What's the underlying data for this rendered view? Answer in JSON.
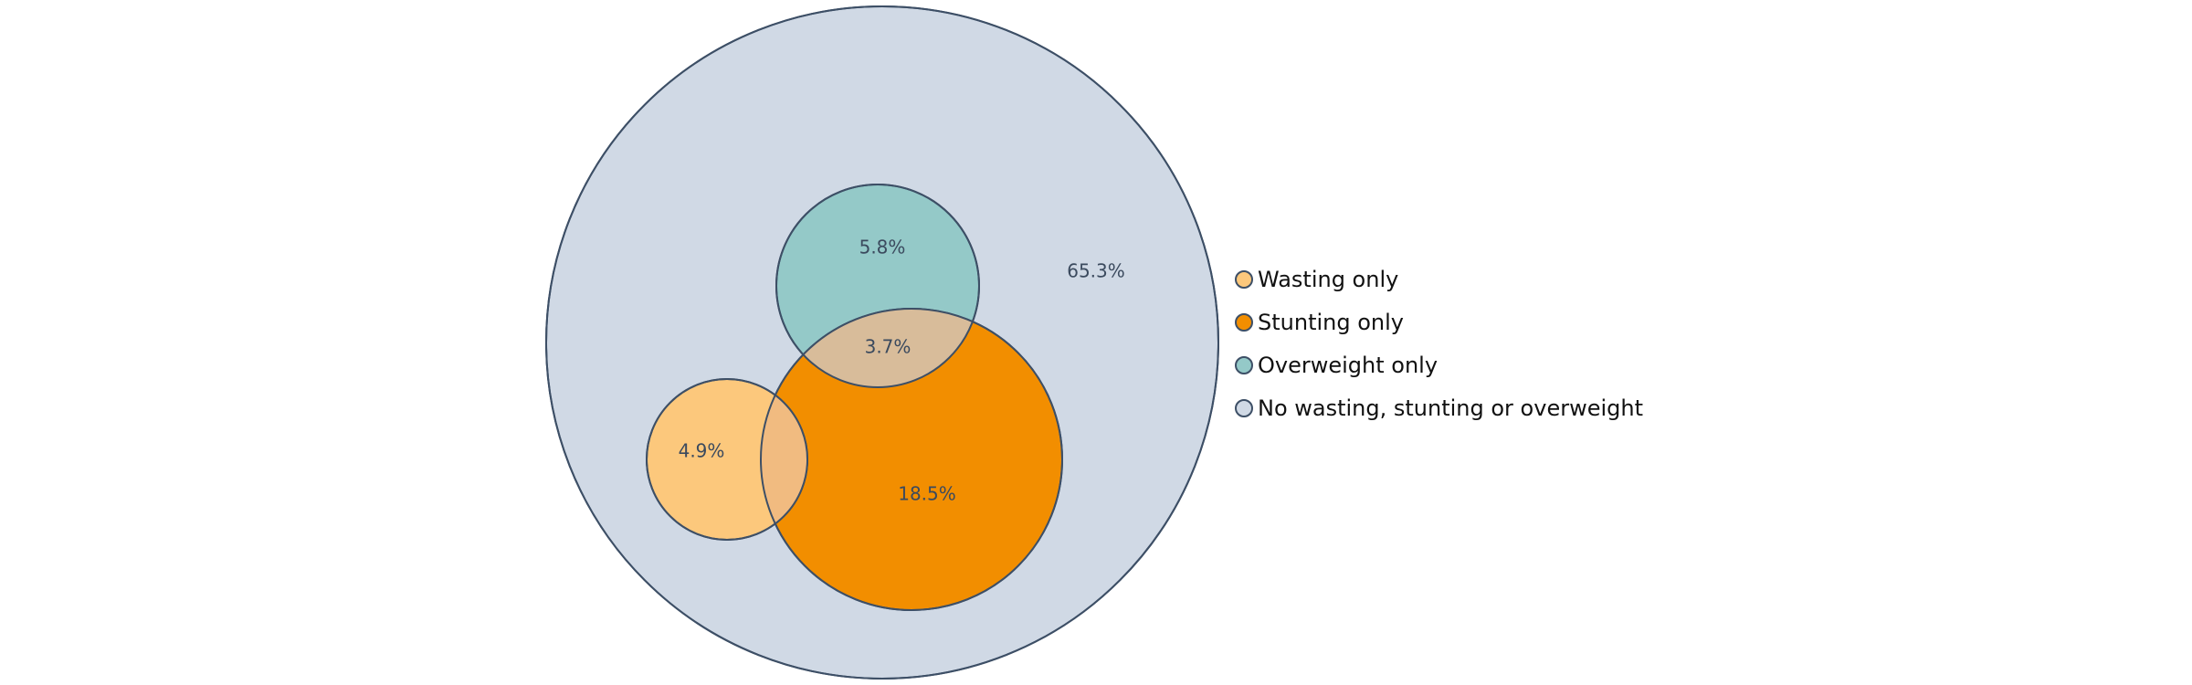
{
  "chart_data": {
    "type": "venn",
    "title": "",
    "sets": [
      {
        "key": "population",
        "label": "No wasting, stunting or overweight",
        "color": "#d0d9e5"
      },
      {
        "key": "wasting",
        "label": "Wasting only",
        "color": "#fcc87c"
      },
      {
        "key": "stunting",
        "label": "Stunting only",
        "color": "#f28e00"
      },
      {
        "key": "overweight",
        "label": "Overweight only",
        "color": "#94c9c8"
      }
    ],
    "regions": [
      {
        "name": "No wasting, stunting or overweight",
        "value": 65.3,
        "text": "65.3%"
      },
      {
        "name": "Overweight only",
        "value": 5.8,
        "text": "5.8%"
      },
      {
        "name": "Stunting and overweight",
        "value": 3.7,
        "text": "3.7%"
      },
      {
        "name": "Wasting only",
        "value": 4.9,
        "text": "4.9%"
      },
      {
        "name": "Stunting only",
        "value": 18.5,
        "text": "18.5%"
      }
    ],
    "overlap_colors": {
      "stunting_overweight": "#d8bc9a",
      "wasting_stunting": "#f1bb80"
    },
    "outline_color": "#3d4f66",
    "legend_position": "right"
  }
}
